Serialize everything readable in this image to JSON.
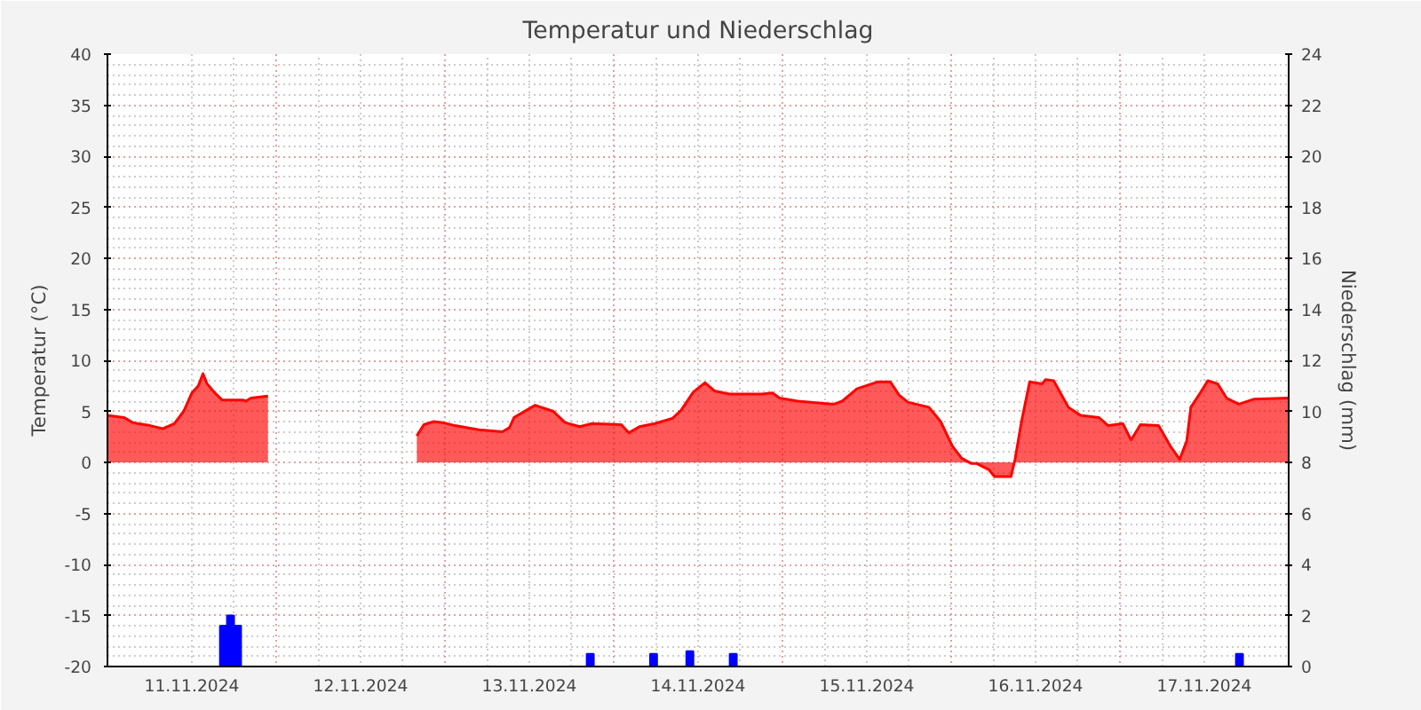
{
  "chart_data": {
    "type": "area",
    "title": "Temperatur und Niederschlag",
    "ylabel": "Temperatur (°C)",
    "y2label": "Niederschlag (mm)",
    "xlim": [
      "2024-11-11T00:00",
      "2024-11-18T00:00"
    ],
    "xticks": [
      {
        "value": "2024-11-11T12:00",
        "label": "11.11.2024"
      },
      {
        "value": "2024-11-12T00:00",
        "label": null
      },
      {
        "value": "2024-11-12T12:00",
        "label": "12.11.2024"
      },
      {
        "value": "2024-11-13T00:00",
        "label": null
      },
      {
        "value": "2024-11-13T12:00",
        "label": "13.11.2024"
      },
      {
        "value": "2024-11-14T00:00",
        "label": null
      },
      {
        "value": "2024-11-14T12:00",
        "label": "14.11.2024"
      },
      {
        "value": "2024-11-15T00:00",
        "label": null
      },
      {
        "value": "2024-11-15T12:00",
        "label": "15.11.2024"
      },
      {
        "value": "2024-11-16T00:00",
        "label": null
      },
      {
        "value": "2024-11-16T12:00",
        "label": "16.11.2024"
      },
      {
        "value": "2024-11-17T00:00",
        "label": null
      },
      {
        "value": "2024-11-17T12:00",
        "label": "17.11.2024"
      }
    ],
    "ylim": [
      -20,
      40
    ],
    "yticks": [
      -20,
      -15,
      -10,
      -5,
      0,
      5,
      10,
      15,
      20,
      25,
      30,
      35,
      40
    ],
    "y2lim": [
      0,
      24
    ],
    "y2ticks": [
      0,
      2,
      4,
      6,
      8,
      10,
      12,
      14,
      16,
      18,
      20,
      22,
      24
    ],
    "grid": true,
    "series": [
      {
        "color": "#ff0000",
        "x": [
          "2024-11-11T00:00",
          "2024-11-11T02:20",
          "2024-11-11T03:35",
          "2024-11-11T06:05",
          "2024-11-11T07:50",
          "2024-11-11T09:30",
          "2024-11-11T10:50",
          "2024-11-11T12:00",
          "2024-11-11T12:55",
          "2024-11-11T13:35",
          "2024-11-11T14:10",
          "2024-11-11T15:25",
          "2024-11-11T16:20",
          "2024-11-11T19:20",
          "2024-11-11T19:40",
          "2024-11-11T20:25",
          "2024-11-11T22:50",
          "2024-11-12T08:00",
          "2024-11-12T20:00",
          "2024-11-12T21:00",
          "2024-11-12T22:25",
          "2024-11-12T23:40",
          "2024-11-13T01:25",
          "2024-11-13T04:50",
          "2024-11-13T08:10",
          "2024-11-13T09:10",
          "2024-11-13T09:50",
          "2024-11-13T11:05",
          "2024-11-13T12:50",
          "2024-11-13T15:25",
          "2024-11-13T17:05",
          "2024-11-13T19:10",
          "2024-11-13T20:55",
          "2024-11-14T01:05",
          "2024-11-14T02:10",
          "2024-11-14T03:40",
          "2024-11-14T05:50",
          "2024-11-14T08:20",
          "2024-11-14T09:35",
          "2024-11-14T11:20",
          "2024-11-14T13:00",
          "2024-11-14T14:20",
          "2024-11-14T16:25",
          "2024-11-14T21:05",
          "2024-11-14T22:35",
          "2024-11-14T23:35",
          "2024-11-15T02:10",
          "2024-11-15T07:20",
          "2024-11-15T08:30",
          "2024-11-15T10:35",
          "2024-11-15T13:35",
          "2024-11-15T15:20",
          "2024-11-15T16:35",
          "2024-11-15T17:50",
          "2024-11-15T20:50",
          "2024-11-15T22:30",
          "2024-11-16T00:10",
          "2024-11-16T01:30",
          "2024-11-16T02:50",
          "2024-11-16T03:35",
          "2024-11-16T05:20",
          "2024-11-16T06:10",
          "2024-11-16T08:30",
          "2024-11-16T09:05",
          "2024-11-16T10:00",
          "2024-11-16T11:10",
          "2024-11-16T12:55",
          "2024-11-16T13:25",
          "2024-11-16T14:35",
          "2024-11-16T16:40",
          "2024-11-16T18:25",
          "2024-11-16T21:00",
          "2024-11-16T22:20",
          "2024-11-17T00:25",
          "2024-11-17T01:35",
          "2024-11-17T02:55",
          "2024-11-17T05:30",
          "2024-11-17T07:10",
          "2024-11-17T08:30",
          "2024-11-17T09:30",
          "2024-11-17T10:05",
          "2024-11-17T11:25",
          "2024-11-17T12:30",
          "2024-11-17T13:55",
          "2024-11-17T15:10",
          "2024-11-17T16:55",
          "2024-11-17T19:05",
          "2024-11-17T23:55"
        ],
        "values": [
          4.6,
          4.4,
          3.9,
          3.6,
          3.3,
          3.8,
          5.0,
          6.8,
          7.5,
          8.7,
          7.7,
          6.7,
          6.1,
          6.1,
          6.0,
          6.3,
          6.5,
          null,
          2.6,
          3.7,
          4.0,
          3.9,
          3.6,
          3.2,
          3.0,
          3.4,
          4.4,
          4.9,
          5.6,
          5.0,
          3.9,
          3.5,
          3.8,
          3.7,
          2.9,
          3.5,
          3.8,
          4.3,
          5.1,
          6.9,
          7.8,
          7.0,
          6.7,
          6.7,
          6.8,
          6.3,
          6.0,
          5.7,
          6.0,
          7.2,
          7.9,
          7.9,
          6.6,
          5.9,
          5.4,
          4.0,
          1.6,
          0.4,
          -0.1,
          -0.1,
          -0.7,
          -1.4,
          -1.4,
          0.3,
          4.0,
          7.9,
          7.7,
          8.1,
          8.0,
          5.4,
          4.6,
          4.4,
          3.6,
          3.8,
          2.2,
          3.7,
          3.6,
          1.6,
          0.3,
          2.1,
          5.4,
          6.8,
          8.0,
          7.7,
          6.3,
          5.7,
          6.2,
          6.3
        ]
      },
      {
        "type": "bar",
        "axis": "y2",
        "color": "#0000ff",
        "x": [
          "2024-11-11T16:30",
          "2024-11-11T17:30",
          "2024-11-11T18:30",
          "2024-11-13T20:40",
          "2024-11-14T05:40",
          "2024-11-14T10:50",
          "2024-11-14T17:00",
          "2024-11-17T17:00"
        ],
        "values": [
          1.6,
          2.0,
          1.6,
          0.5,
          0.5,
          0.6,
          0.5,
          0.5
        ]
      }
    ]
  }
}
